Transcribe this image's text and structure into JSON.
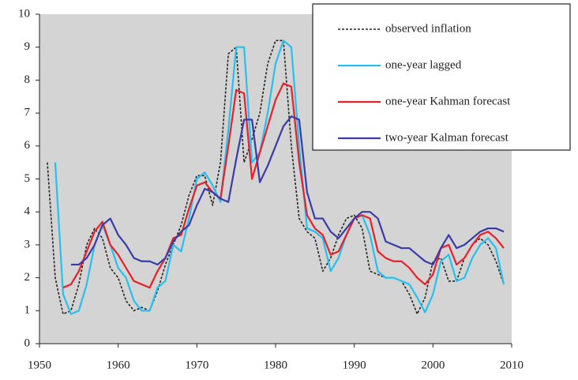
{
  "chart_data": {
    "type": "line",
    "x": [
      1951,
      1952,
      1953,
      1954,
      1955,
      1956,
      1957,
      1958,
      1959,
      1960,
      1961,
      1962,
      1963,
      1964,
      1965,
      1966,
      1967,
      1968,
      1969,
      1970,
      1971,
      1972,
      1973,
      1974,
      1975,
      1976,
      1977,
      1978,
      1979,
      1980,
      1981,
      1982,
      1983,
      1984,
      1985,
      1986,
      1987,
      1988,
      1989,
      1990,
      1991,
      1992,
      1993,
      1994,
      1995,
      1996,
      1997,
      1998,
      1999,
      2000,
      2001,
      2002,
      2003,
      2004,
      2005,
      2006,
      2007,
      2008,
      2009
    ],
    "series": [
      {
        "name": "observed inflation",
        "color": "#222222",
        "dashed": true,
        "values": [
          5.5,
          2.0,
          0.9,
          1.0,
          1.8,
          3.0,
          3.5,
          3.2,
          2.3,
          2.0,
          1.3,
          1.0,
          1.1,
          1.0,
          1.6,
          2.4,
          3.0,
          3.6,
          4.5,
          5.1,
          5.1,
          4.2,
          5.5,
          8.8,
          9.0,
          5.5,
          6.2,
          7.0,
          8.5,
          9.2,
          9.2,
          6.0,
          3.8,
          3.4,
          3.2,
          2.2,
          2.6,
          3.3,
          3.8,
          3.9,
          3.5,
          2.2,
          2.1,
          2.0,
          2.0,
          1.9,
          1.5,
          0.9,
          1.4,
          2.5,
          2.6,
          1.9,
          1.9,
          2.6,
          3.0,
          3.2,
          3.0,
          2.5,
          1.8
        ]
      },
      {
        "name": "one-year lagged",
        "color": "#27c0ee",
        "dashed": false,
        "values": [
          null,
          5.5,
          1.5,
          0.9,
          1.0,
          1.8,
          3.0,
          3.6,
          3.0,
          2.3,
          2.0,
          1.3,
          1.0,
          1.0,
          1.7,
          1.9,
          3.0,
          2.8,
          3.8,
          5.0,
          5.2,
          4.8,
          4.3,
          6.5,
          9.0,
          9.0,
          5.5,
          5.8,
          7.0,
          8.5,
          9.2,
          9.0,
          6.0,
          3.5,
          3.4,
          3.2,
          2.2,
          2.6,
          3.3,
          3.8,
          3.9,
          3.3,
          2.2,
          2.0,
          2.0,
          1.9,
          1.8,
          1.4,
          0.95,
          1.5,
          2.5,
          2.7,
          1.9,
          2.0,
          2.6,
          3.0,
          3.2,
          2.9,
          1.8
        ]
      },
      {
        "name": "one-year Kahman forecast",
        "color": "#e8202a",
        "dashed": false,
        "values": [
          null,
          null,
          1.7,
          1.8,
          2.2,
          2.8,
          3.4,
          3.7,
          3.0,
          2.7,
          2.3,
          1.9,
          1.8,
          1.7,
          2.2,
          2.6,
          3.2,
          3.3,
          4.1,
          4.8,
          4.9,
          4.6,
          4.4,
          6.0,
          7.7,
          7.6,
          5.0,
          5.8,
          6.6,
          7.4,
          7.9,
          7.8,
          5.5,
          3.9,
          3.5,
          3.3,
          2.7,
          2.8,
          3.3,
          3.8,
          3.9,
          3.8,
          2.8,
          2.6,
          2.5,
          2.5,
          2.3,
          2.0,
          1.8,
          2.1,
          2.9,
          3.0,
          2.4,
          2.6,
          3.0,
          3.3,
          3.4,
          3.2,
          2.9
        ]
      },
      {
        "name": "two-year Kalman forecast",
        "color": "#3a3aa8",
        "dashed": false,
        "values": [
          null,
          null,
          null,
          2.4,
          2.4,
          2.6,
          3.0,
          3.6,
          3.8,
          3.3,
          3.0,
          2.6,
          2.5,
          2.5,
          2.4,
          2.6,
          3.1,
          3.4,
          3.6,
          4.2,
          4.7,
          4.6,
          4.4,
          4.3,
          5.6,
          6.8,
          6.8,
          4.9,
          5.4,
          6.0,
          6.6,
          6.9,
          6.8,
          4.6,
          3.8,
          3.8,
          3.4,
          3.2,
          3.5,
          3.8,
          4.0,
          4.0,
          3.8,
          3.1,
          3.0,
          2.9,
          2.9,
          2.7,
          2.5,
          2.4,
          2.9,
          3.3,
          2.9,
          3.0,
          3.2,
          3.4,
          3.5,
          3.5,
          3.4
        ]
      }
    ],
    "xlim": [
      1950,
      2010
    ],
    "xticks": [
      1950,
      1960,
      1970,
      1980,
      1990,
      2000,
      2010
    ],
    "ylim": [
      0,
      10
    ],
    "yticks": [
      0,
      1,
      2,
      3,
      4,
      5,
      6,
      7,
      8,
      9,
      10
    ],
    "legend": "upper right",
    "background": "#d4d4d4"
  }
}
